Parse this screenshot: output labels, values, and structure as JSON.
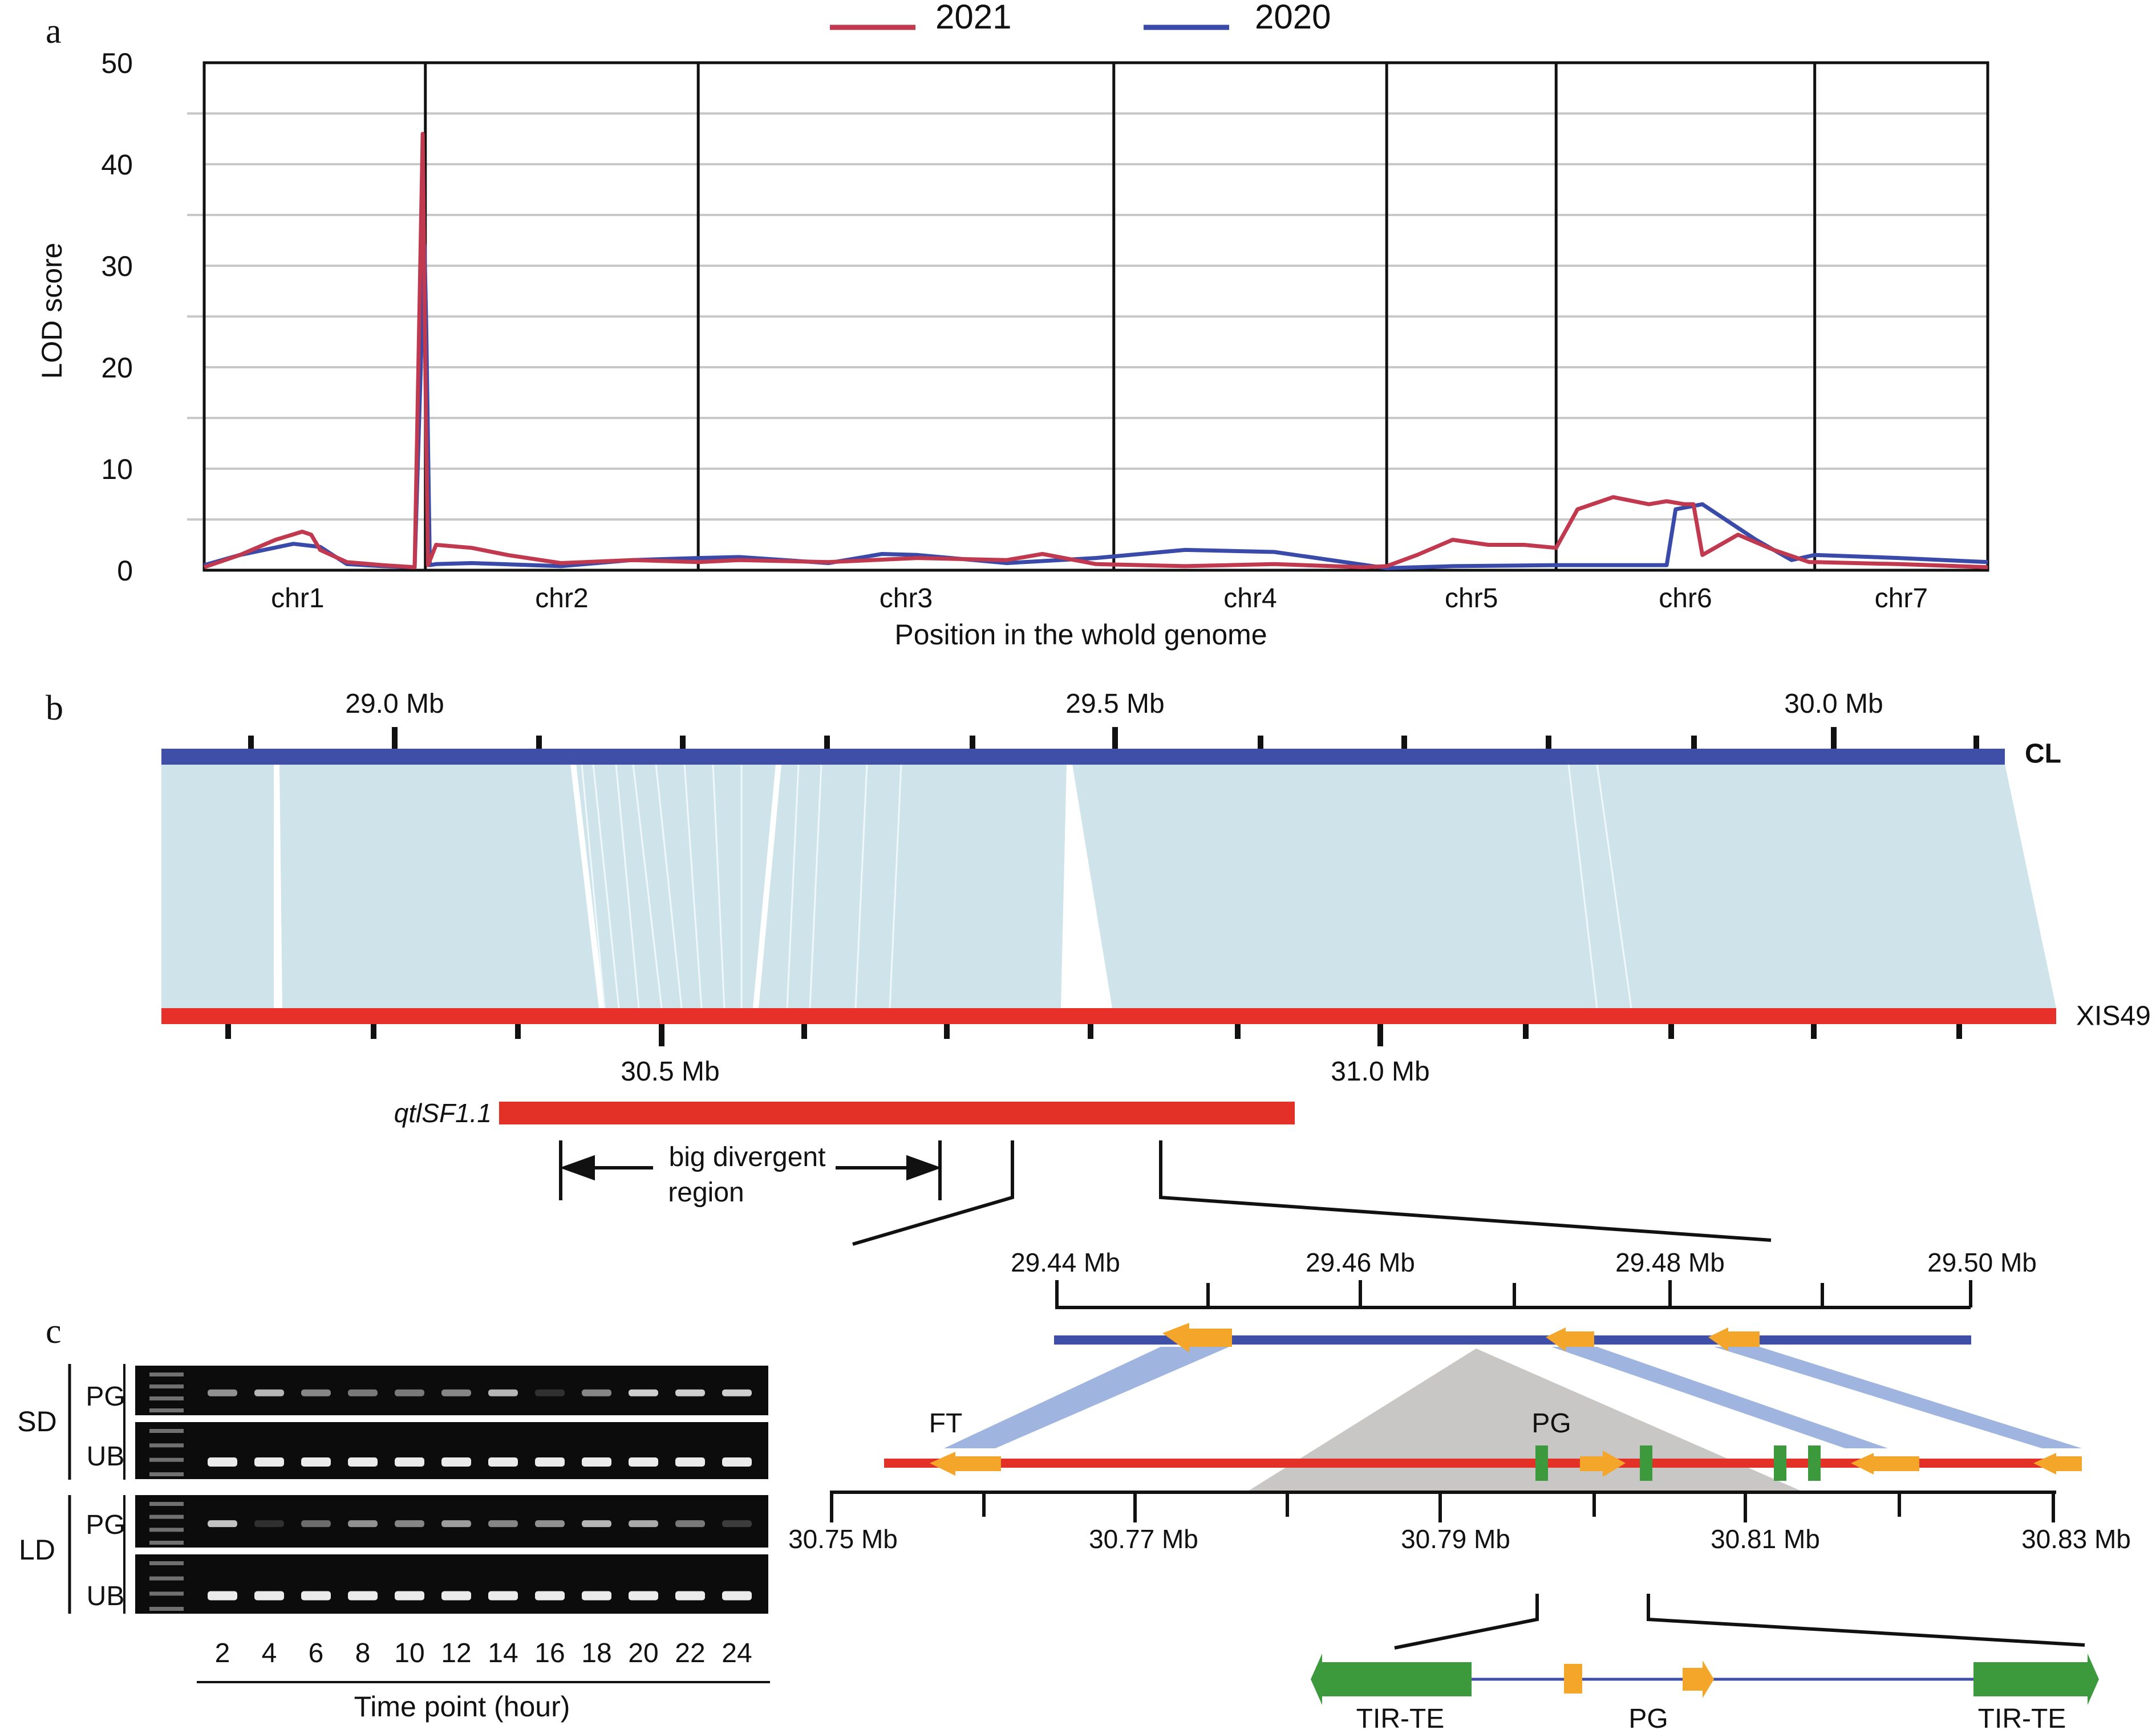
{
  "panels": {
    "a": "a",
    "b": "b",
    "c": "c"
  },
  "colors": {
    "series_2021": "#c0394e",
    "series_2020": "#3a4aa8",
    "cl_bar": "#3f4ea6",
    "xis49_bar": "#e8302a",
    "synteny": "#cfe4ea",
    "qtl": "#e33128",
    "gene_arrow": "#f4a62a",
    "tir": "#3c9a3c",
    "link": "#9fb5e0",
    "gray_tri": "#c9c6c6"
  },
  "chart_data": {
    "type": "line",
    "title": "",
    "xlabel": "Position in the whold genome",
    "ylabel": "LOD score",
    "ylim": [
      0,
      50
    ],
    "yticks": [
      "0",
      "10",
      "20",
      "30",
      "40",
      "50"
    ],
    "grid": true,
    "legend_position": "top-center",
    "chromosomes": [
      "chr1",
      "chr2",
      "chr3",
      "chr4",
      "chr5",
      "chr6",
      "chr7"
    ],
    "chromosome_boundaries": [
      0,
      0.124,
      0.277,
      0.51,
      0.663,
      0.758,
      0.903,
      1.0
    ],
    "series": [
      {
        "name": "2021",
        "x": [
          0,
          0.02,
          0.04,
          0.055,
          0.06,
          0.065,
          0.08,
          0.1,
          0.118,
          0.1225,
          0.124,
          0.1255,
          0.13,
          0.15,
          0.17,
          0.2,
          0.24,
          0.277,
          0.3,
          0.35,
          0.4,
          0.45,
          0.47,
          0.5,
          0.55,
          0.6,
          0.65,
          0.663,
          0.68,
          0.7,
          0.72,
          0.74,
          0.758,
          0.77,
          0.79,
          0.81,
          0.82,
          0.83,
          0.835,
          0.84,
          0.86,
          0.88,
          0.9,
          0.903,
          0.95,
          1.0
        ],
        "y": [
          0.3,
          1.5,
          3,
          3.8,
          3.5,
          2,
          0.8,
          0.5,
          0.3,
          43,
          20,
          0.5,
          2.5,
          2.2,
          1.5,
          0.7,
          1,
          0.8,
          1,
          0.8,
          1.2,
          1,
          1.6,
          0.6,
          0.4,
          0.6,
          0.3,
          0.4,
          1.5,
          3,
          2.5,
          2.5,
          2.2,
          6,
          7.2,
          6.5,
          6.8,
          6.5,
          6.5,
          1.5,
          3.5,
          2,
          0.8,
          0.8,
          0.6,
          0.3
        ]
      },
      {
        "name": "2020",
        "x": [
          0,
          0.02,
          0.05,
          0.065,
          0.08,
          0.1,
          0.118,
          0.1235,
          0.1245,
          0.1265,
          0.13,
          0.15,
          0.2,
          0.24,
          0.277,
          0.3,
          0.35,
          0.38,
          0.4,
          0.45,
          0.5,
          0.55,
          0.6,
          0.663,
          0.7,
          0.758,
          0.82,
          0.825,
          0.84,
          0.87,
          0.89,
          0.903,
          0.95,
          1.0
        ],
        "y": [
          0.5,
          1.5,
          2.6,
          2.3,
          0.6,
          0.4,
          0.3,
          32,
          24,
          0.5,
          0.6,
          0.7,
          0.4,
          1,
          1.2,
          1.3,
          0.7,
          1.6,
          1.5,
          0.7,
          1.2,
          2,
          1.8,
          0.2,
          0.4,
          0.5,
          0.5,
          6,
          6.5,
          3,
          1,
          1.5,
          1.2,
          0.8
        ]
      }
    ]
  },
  "panel_b": {
    "top_ticks": [
      "29.0 Mb",
      "29.5 Mb",
      "30.0 Mb"
    ],
    "top_label": "CL",
    "bottom_ticks": [
      "30.5 Mb",
      "31.0 Mb"
    ],
    "bottom_label": "XIS49",
    "qtl_label": "qtlSF1.1",
    "divergent_label_1": "big divergent",
    "divergent_label_2": "region",
    "zoom_top_ticks": [
      "29.44 Mb",
      "29.46 Mb",
      "29.48 Mb",
      "29.50 Mb"
    ],
    "zoom_bottom_ticks": [
      "30.75 Mb",
      "30.77 Mb",
      "30.79 Mb",
      "30.81 Mb",
      "30.83 Mb"
    ],
    "ft_label": "FT",
    "pg_label": "PG",
    "detail": {
      "tir_left": "TIR-TE",
      "pg": "PG",
      "tir_right": "TIR-TE"
    }
  },
  "panel_c": {
    "sd_label": "SD",
    "ld_label": "LD",
    "gene_pg": "PG",
    "gene_ub": "UB",
    "time_points": [
      "2",
      "4",
      "6",
      "8",
      "10",
      "12",
      "14",
      "16",
      "18",
      "20",
      "22",
      "24"
    ],
    "x_label": "Time point (hour)",
    "sd_pg_intensity": [
      0.55,
      0.7,
      0.5,
      0.45,
      0.45,
      0.5,
      0.7,
      0.15,
      0.5,
      0.8,
      0.8,
      0.8
    ],
    "ld_pg_intensity": [
      0.75,
      0.15,
      0.4,
      0.55,
      0.5,
      0.6,
      0.5,
      0.55,
      0.7,
      0.65,
      0.45,
      0.2
    ]
  }
}
